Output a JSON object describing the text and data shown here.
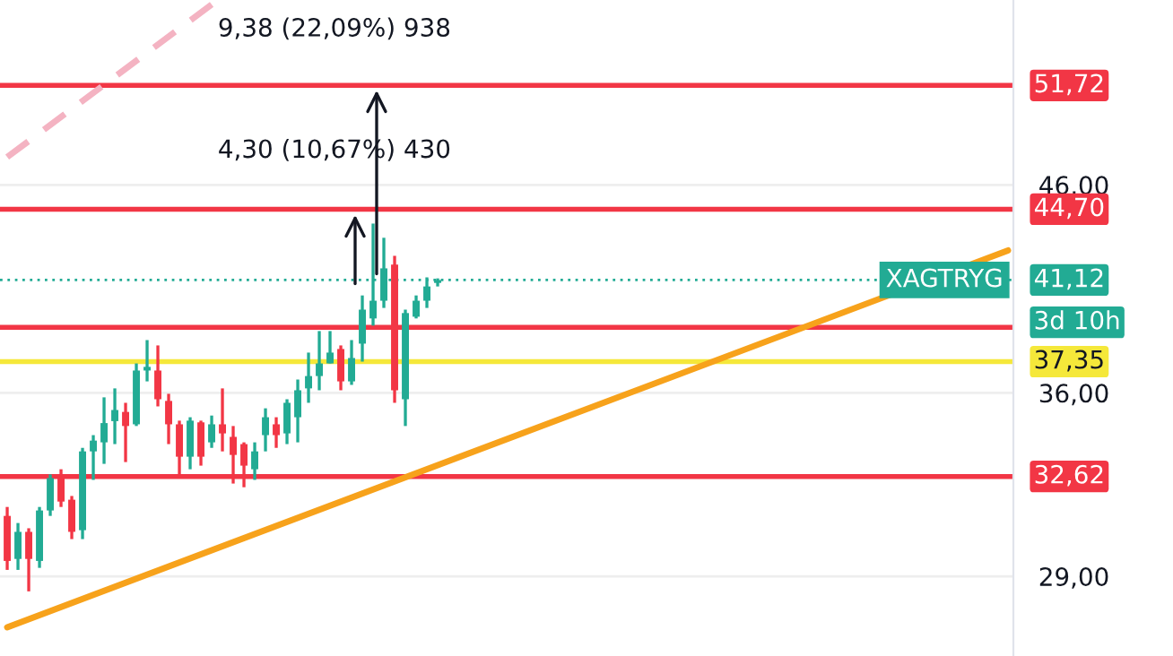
{
  "chart_data": {
    "type": "candlestick",
    "categories": [
      null,
      null,
      null,
      null,
      null,
      null,
      null,
      null,
      null,
      null,
      null,
      null,
      null,
      null,
      null,
      null,
      null,
      null,
      null,
      null,
      null,
      null,
      null,
      null,
      null,
      null,
      null,
      null,
      null,
      null,
      null,
      null,
      null,
      null,
      null,
      null,
      null,
      null,
      null,
      null,
      null,
      null,
      null,
      null,
      null,
      null,
      null,
      null,
      null,
      null,
      null,
      null,
      null,
      null,
      null,
      null,
      null,
      null,
      null,
      null,
      null,
      null,
      null,
      null,
      null,
      null,
      null,
      null,
      null,
      null,
      null,
      null,
      null,
      null,
      null,
      null,
      null,
      null,
      null,
      null,
      null,
      null,
      null,
      null,
      null,
      null,
      null,
      null,
      null,
      null,
      null,
      null,
      null,
      null
    ],
    "ohlc": [
      [
        31.14,
        31.47,
        29.22,
        29.53
      ],
      [
        29.6,
        30.88,
        29.22,
        30.56
      ],
      [
        30.56,
        30.69,
        28.49,
        29.6
      ],
      [
        29.53,
        31.47,
        29.29,
        31.34
      ],
      [
        31.34,
        32.7,
        31.14,
        32.56
      ],
      [
        32.63,
        32.9,
        31.47,
        31.67
      ],
      [
        31.74,
        31.88,
        30.3,
        30.56
      ],
      [
        30.62,
        33.74,
        30.3,
        33.6
      ],
      [
        33.6,
        34.25,
        32.49,
        34.03
      ],
      [
        33.96,
        35.81,
        33.11,
        34.74
      ],
      [
        34.82,
        36.19,
        33.89,
        35.28
      ],
      [
        35.2,
        35.58,
        33.18,
        34.62
      ],
      [
        34.69,
        37.27,
        34.62,
        36.96
      ],
      [
        36.96,
        38.31,
        36.49,
        37.12
      ],
      [
        36.96,
        38.07,
        35.43,
        35.73
      ],
      [
        35.66,
        35.96,
        33.89,
        34.69
      ],
      [
        34.69,
        34.84,
        32.7,
        33.39
      ],
      [
        33.39,
        34.98,
        32.9,
        34.84
      ],
      [
        34.77,
        34.84,
        33.04,
        33.39
      ],
      [
        33.96,
        35.05,
        33.74,
        34.69
      ],
      [
        34.69,
        36.19,
        33.6,
        34.32
      ],
      [
        34.18,
        34.62,
        32.35,
        33.46
      ],
      [
        33.89,
        33.96,
        32.21,
        33.04
      ],
      [
        32.9,
        33.96,
        32.49,
        33.6
      ],
      [
        34.25,
        35.35,
        33.6,
        34.98
      ],
      [
        34.69,
        34.98,
        33.74,
        34.25
      ],
      [
        34.32,
        35.73,
        33.89,
        35.58
      ],
      [
        34.98,
        36.57,
        33.96,
        36.11
      ],
      [
        36.19,
        37.75,
        35.58,
        36.72
      ],
      [
        36.72,
        38.72,
        36.11,
        37.27
      ],
      [
        37.27,
        38.72,
        37.27,
        37.75
      ],
      [
        37.91,
        38.07,
        36.11,
        36.49
      ],
      [
        36.49,
        38.31,
        36.34,
        37.51
      ],
      [
        38.15,
        40.38,
        37.35,
        39.71
      ],
      [
        39.3,
        43.95,
        38.97,
        40.13
      ],
      [
        40.13,
        43.22,
        39.79,
        41.69
      ],
      [
        41.87,
        42.31,
        35.58,
        36.11
      ],
      [
        35.73,
        39.71,
        34.62,
        39.55
      ],
      [
        39.38,
        40.38,
        39.3,
        40.13
      ],
      [
        40.13,
        41.25,
        39.79,
        40.81
      ],
      [
        40.98,
        41.2,
        40.81,
        41.12
      ],
      null,
      null,
      null,
      null,
      null,
      null,
      null,
      null,
      null,
      null,
      null,
      null,
      null,
      null,
      null,
      null,
      null,
      null,
      null,
      null,
      null,
      null,
      null,
      null,
      null,
      null,
      null,
      null,
      null,
      null,
      null,
      null,
      null,
      null,
      null,
      null,
      null,
      null,
      null,
      null,
      null,
      null,
      null,
      null,
      null,
      null,
      null,
      null,
      null,
      null,
      null,
      null,
      null
    ],
    "colors": [
      "#f23645",
      "#22ab94",
      "#f23645",
      "#22ab94",
      "#22ab94",
      "#f23645",
      "#f23645",
      "#22ab94",
      "#22ab94",
      "#22ab94",
      "#22ab94",
      "#f23645",
      "#22ab94",
      "#22ab94",
      "#f23645",
      "#f23645",
      "#f23645",
      "#22ab94",
      "#f23645",
      "#22ab94",
      "#f23645",
      "#f23645",
      "#f23645",
      "#22ab94",
      "#22ab94",
      "#f23645",
      "#22ab94",
      "#22ab94",
      "#22ab94",
      "#22ab94",
      "#22ab94",
      "#f23645",
      "#22ab94",
      "#22ab94",
      "#22ab94",
      "#22ab94",
      "#f23645",
      "#22ab94",
      "#22ab94",
      "#22ab94",
      "#22ab94",
      null,
      null,
      null,
      null,
      null,
      null,
      null,
      null,
      null,
      null,
      null,
      null,
      null,
      null,
      null,
      null,
      null,
      null,
      null,
      null,
      null,
      null,
      null,
      null,
      null,
      null,
      null,
      null,
      null,
      null,
      null,
      null,
      null,
      null,
      null,
      null,
      null,
      null,
      null,
      null,
      null,
      null,
      null,
      null,
      null,
      null,
      null,
      null,
      null,
      null,
      null,
      null,
      null
    ],
    "series": [
      {
        "type": "line",
        "color": "#f7a21b",
        "values": [
          27.31,
          null,
          null,
          null,
          null,
          null,
          null,
          null,
          null,
          null,
          null,
          null,
          null,
          null,
          null,
          null,
          null,
          null,
          null,
          null,
          null,
          null,
          null,
          null,
          null,
          null,
          null,
          null,
          null,
          null,
          null,
          null,
          null,
          null,
          null,
          null,
          null,
          null,
          null,
          null,
          null,
          null,
          null,
          null,
          null,
          null,
          null,
          null,
          null,
          null,
          null,
          null,
          null,
          null,
          null,
          null,
          null,
          null,
          null,
          null,
          null,
          null,
          null,
          null,
          null,
          null,
          null,
          null,
          null,
          null,
          null,
          null,
          null,
          null,
          null,
          null,
          null,
          null,
          null,
          null,
          null,
          null,
          null,
          null,
          null,
          null,
          null,
          null,
          null,
          null,
          null,
          null,
          null,
          42.58
        ]
      },
      {
        "type": "line",
        "color": "#f4b3c2",
        "line_style": "dashed",
        "values": [
          47.53,
          null,
          null,
          null,
          null,
          null,
          null,
          null,
          null,
          null,
          null,
          null,
          null,
          null,
          null,
          null,
          null,
          null,
          null,
          56.9,
          null,
          null,
          null,
          null,
          null,
          null,
          null,
          null,
          null,
          null,
          null,
          null,
          null,
          null,
          null,
          null,
          null,
          null,
          null,
          null,
          null,
          null,
          null,
          null,
          null,
          null,
          null,
          null,
          null,
          null,
          null,
          null,
          null,
          null,
          null,
          null,
          null,
          null,
          null,
          null,
          null,
          null,
          null,
          null,
          null,
          null,
          null,
          null,
          null,
          null,
          null,
          null,
          null,
          null,
          null,
          null,
          null,
          null,
          null,
          null,
          null,
          null,
          null,
          null,
          null,
          null,
          null,
          null,
          null,
          null,
          null,
          null,
          null,
          null
        ]
      }
    ],
    "log": "y",
    "ylim": [
      26.4,
      57.2
    ],
    "yticks": [
      {
        "value": 29,
        "label": "29,00"
      },
      {
        "value": 36,
        "label": "36,00"
      },
      {
        "value": 46,
        "label": "46,00"
      }
    ],
    "grid": "y",
    "ref_lines": [
      {
        "axis": "y",
        "value": 51.72,
        "label": "51,72",
        "color": "#f23645"
      },
      {
        "axis": "y",
        "value": 44.7,
        "label": "44,70",
        "color": "#f23645"
      },
      {
        "axis": "y",
        "value": 37.35,
        "label": "37,35",
        "color": "#f5e83a"
      },
      {
        "axis": "y",
        "value": 38.89,
        "label": null,
        "color": "#f23645"
      },
      {
        "axis": "y",
        "value": 32.62,
        "label": "32,62",
        "color": "#f23645"
      },
      {
        "axis": "y",
        "value": 41.12,
        "label": "41,12",
        "color": "#22ab94",
        "line_style": "dotted"
      }
    ],
    "annotations": [
      "9,38 (22,09%) 938",
      "4,30 (10,67%) 430",
      "XAGTRYG",
      "3d 10h"
    ]
  }
}
